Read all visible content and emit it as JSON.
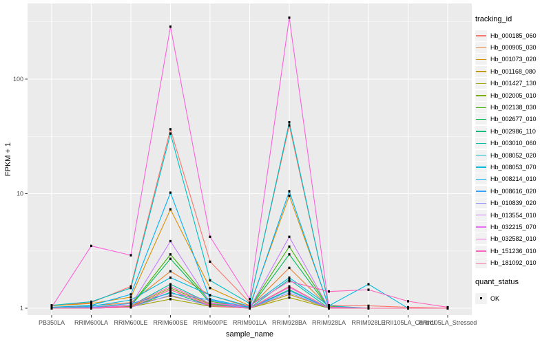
{
  "chart_data": {
    "type": "line",
    "title": "",
    "xlabel": "sample_name",
    "ylabel": "FPKM + 1",
    "y_scale": "log10",
    "y_ticks": [
      1,
      10,
      100
    ],
    "ylim_log": [
      0.97,
      400
    ],
    "grid": true,
    "panel_bg": "#EBEBEB",
    "grid_color": "#FFFFFF",
    "tick_label_color": "#4D4D4D",
    "axis_title_color": "#000000",
    "marker": "black-square",
    "categories": [
      "PB350LA",
      "RRIM600LA",
      "RRIM600LE",
      "RRIM600SE",
      "RRIM600PE",
      "RRIM901LA",
      "RRIM928BA",
      "RRIM928LA",
      "RRIM928LE",
      "RRII105LA_Control",
      "RRII105LA_Stressed"
    ],
    "series": [
      {
        "name": "Hb_000185_060",
        "color": "#F8766D",
        "values": [
          1.05,
          1.12,
          1.55,
          36.5,
          2.55,
          1.12,
          39.5,
          1.06,
          1.05,
          1.02,
          1.0
        ]
      },
      {
        "name": "Hb_000905_030",
        "color": "#EA8331",
        "values": [
          1.02,
          1.05,
          1.12,
          2.1,
          1.3,
          1.02,
          2.25,
          1.02,
          1.0,
          1.0,
          1.0
        ]
      },
      {
        "name": "Hb_001073_020",
        "color": "#D89000",
        "values": [
          1.05,
          1.1,
          1.25,
          7.3,
          1.5,
          1.05,
          9.6,
          1.04,
          1.0,
          1.0,
          1.0
        ]
      },
      {
        "name": "Hb_001168_080",
        "color": "#C09B00",
        "values": [
          1.0,
          1.02,
          1.06,
          1.28,
          1.06,
          1.0,
          1.32,
          1.0,
          1.0,
          1.0,
          1.0
        ]
      },
      {
        "name": "Hb_001427_130",
        "color": "#A3A500",
        "values": [
          1.0,
          1.0,
          1.03,
          1.2,
          1.04,
          1.0,
          1.24,
          1.0,
          1.0,
          1.0,
          1.0
        ]
      },
      {
        "name": "Hb_002005_010",
        "color": "#7CAE00",
        "values": [
          1.0,
          1.01,
          1.04,
          1.5,
          1.08,
          1.0,
          1.55,
          1.0,
          1.0,
          1.0,
          1.0
        ]
      },
      {
        "name": "Hb_002138_030",
        "color": "#39B600",
        "values": [
          1.0,
          1.02,
          1.06,
          2.95,
          1.15,
          1.01,
          3.45,
          1.01,
          1.0,
          1.0,
          1.0
        ]
      },
      {
        "name": "Hb_002677_010",
        "color": "#00BB4E",
        "values": [
          1.0,
          1.01,
          1.05,
          2.7,
          1.12,
          1.0,
          2.95,
          1.0,
          1.0,
          1.0,
          1.0
        ]
      },
      {
        "name": "Hb_002986_110",
        "color": "#00BF7D",
        "values": [
          1.0,
          1.0,
          1.02,
          1.38,
          1.05,
          1.0,
          1.45,
          1.0,
          1.0,
          1.0,
          1.0
        ]
      },
      {
        "name": "Hb_003010_060",
        "color": "#00C1A3",
        "values": [
          1.0,
          1.01,
          1.05,
          1.62,
          1.1,
          1.0,
          1.78,
          1.0,
          1.0,
          1.0,
          1.0
        ]
      },
      {
        "name": "Hb_008052_020",
        "color": "#00BFC4",
        "values": [
          1.06,
          1.14,
          1.5,
          33.5,
          1.75,
          1.1,
          42.0,
          1.05,
          1.0,
          1.0,
          1.0
        ]
      },
      {
        "name": "Hb_008053_070",
        "color": "#00BAE0",
        "values": [
          1.0,
          1.04,
          1.18,
          1.85,
          1.3,
          1.04,
          1.85,
          1.05,
          1.62,
          1.0,
          1.0
        ]
      },
      {
        "name": "Hb_008214_010",
        "color": "#00B0F6",
        "values": [
          1.02,
          1.06,
          1.32,
          10.2,
          1.2,
          1.02,
          10.5,
          1.02,
          1.0,
          1.0,
          1.0
        ]
      },
      {
        "name": "Hb_008616_020",
        "color": "#35A2FF",
        "values": [
          1.0,
          1.02,
          1.1,
          1.35,
          1.18,
          1.0,
          1.42,
          1.0,
          1.0,
          1.0,
          1.0
        ]
      },
      {
        "name": "Hb_010839_020",
        "color": "#9590FF",
        "values": [
          1.0,
          1.0,
          1.02,
          1.3,
          1.05,
          1.0,
          1.36,
          1.0,
          1.0,
          1.0,
          1.0
        ]
      },
      {
        "name": "Hb_013554_010",
        "color": "#C77CFF",
        "values": [
          1.0,
          1.01,
          1.06,
          3.85,
          1.12,
          1.0,
          4.2,
          1.0,
          1.0,
          1.0,
          1.0
        ]
      },
      {
        "name": "Hb_032215_070",
        "color": "#E76BF3",
        "values": [
          1.0,
          1.0,
          1.02,
          1.45,
          1.06,
          1.0,
          1.52,
          1.0,
          1.0,
          1.0,
          1.0
        ]
      },
      {
        "name": "Hb_032582_010",
        "color": "#FA62DB",
        "values": [
          1.02,
          3.5,
          2.9,
          287,
          4.2,
          1.2,
          344,
          1.02,
          1.0,
          1.0,
          1.0
        ]
      },
      {
        "name": "Hb_151236_010",
        "color": "#FF62BC",
        "values": [
          1.0,
          1.0,
          1.05,
          1.55,
          1.1,
          1.05,
          1.72,
          1.4,
          1.45,
          1.15,
          1.02
        ]
      },
      {
        "name": "Hb_181092_010",
        "color": "#FF6A98",
        "values": [
          1.0,
          1.0,
          1.02,
          1.45,
          1.05,
          1.0,
          1.55,
          1.0,
          1.0,
          1.0,
          1.0
        ]
      }
    ],
    "legend": {
      "title": "tracking_id",
      "position": "right"
    },
    "quant_legend": {
      "title": "quant_status",
      "items": [
        {
          "label": "OK",
          "marker": "black-square"
        }
      ]
    }
  }
}
